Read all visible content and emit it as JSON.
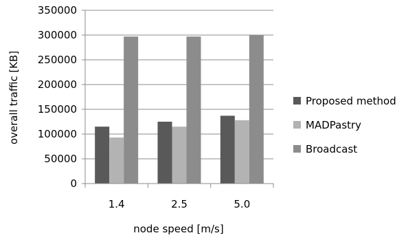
{
  "chart_data": {
    "type": "bar",
    "title": "",
    "xlabel": "node speed [m/s]",
    "ylabel": "overall traffic [KB]",
    "categories": [
      "1.4",
      "2.5",
      "5.0"
    ],
    "ylim": [
      0,
      350000
    ],
    "yticks": [
      0,
      50000,
      100000,
      150000,
      200000,
      250000,
      300000,
      350000
    ],
    "grid": true,
    "legend_position": "right",
    "series": [
      {
        "name": "Proposed method",
        "color": "#595959",
        "values": [
          115000,
          125000,
          137000
        ]
      },
      {
        "name": "MADPastry",
        "color": "#b3b3b3",
        "values": [
          93000,
          115000,
          128000
        ]
      },
      {
        "name": "Broadcast",
        "color": "#8c8c8c",
        "values": [
          297000,
          297000,
          300000
        ]
      }
    ]
  }
}
